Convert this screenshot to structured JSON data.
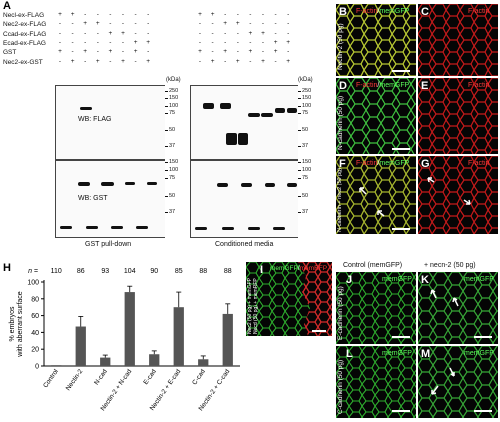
{
  "panel_a": {
    "label": "A",
    "row_labels": [
      "Necl-ex-FLAG",
      "Nec2-ex-FLAG",
      "Ccad-ex-FLAG",
      "Ecad-ex-FLAG",
      "GST",
      "Nec2-ex-GST"
    ],
    "pulldown_signs": [
      [
        "+",
        "+",
        "-",
        "-",
        "-",
        "-",
        "-",
        "-"
      ],
      [
        "-",
        "-",
        "+",
        "+",
        "-",
        "-",
        "-",
        "-"
      ],
      [
        "-",
        "-",
        "-",
        "-",
        "+",
        "+",
        "-",
        "-"
      ],
      [
        "-",
        "-",
        "-",
        "-",
        "-",
        "-",
        "+",
        "+"
      ],
      [
        "+",
        "-",
        "+",
        "-",
        "+",
        "-",
        "+",
        "-"
      ],
      [
        "-",
        "+",
        "-",
        "+",
        "-",
        "+",
        "-",
        "+"
      ]
    ],
    "cm_signs": [
      [
        "+",
        "+",
        "-",
        "-",
        "-",
        "-",
        "-",
        "-"
      ],
      [
        "-",
        "-",
        "+",
        "+",
        "-",
        "-",
        "-",
        "-"
      ],
      [
        "-",
        "-",
        "-",
        "-",
        "+",
        "+",
        "-",
        "-"
      ],
      [
        "-",
        "-",
        "-",
        "-",
        "-",
        "-",
        "+",
        "+"
      ],
      [
        "+",
        "-",
        "+",
        "-",
        "+",
        "-",
        "+",
        "-"
      ],
      [
        "-",
        "+",
        "-",
        "+",
        "-",
        "+",
        "-",
        "+"
      ]
    ],
    "kda": "(kDa)",
    "mw_top": [
      "250",
      "150",
      "100",
      "75",
      "50",
      "37"
    ],
    "mw_bottom": [
      "150",
      "100",
      "75",
      "50",
      "37"
    ],
    "wb_flag": "WB: FLAG",
    "wb_gst": "WB: GST",
    "pulldown_label": "GST pull-down",
    "cm_label": "Conditioned media"
  },
  "micrographs": {
    "B": {
      "label": "B",
      "caption_red": "F-actin",
      "caption_sep": "/",
      "caption_green": "memGFP",
      "side": "Nectin-2 (50 pg)"
    },
    "C": {
      "label": "C",
      "caption_red": "F-actin"
    },
    "D": {
      "label": "D",
      "caption_red": "F-actin",
      "caption_sep": "/",
      "caption_green": "memGFP",
      "side": "N-cadherin (50 pg)"
    },
    "E": {
      "label": "E",
      "caption_red": "F-actin"
    },
    "F": {
      "label": "F",
      "caption_red": "F-actin",
      "caption_sep": "/",
      "caption_green": "memGFP",
      "side": "N-cadherin + nec2 (50 pg)"
    },
    "G": {
      "label": "G",
      "caption_red": "F-actin"
    },
    "I": {
      "label": "I",
      "caption_green": "memGFP",
      "caption_sep": "/",
      "caption_red": "memRFP",
      "side1": "Nec2 (50 pg) + memGFP",
      "side2": "Necd (50 pg) + memRFP"
    },
    "J": {
      "label": "J",
      "caption": "memGFP",
      "side": "E-cadherin (50 pg)"
    },
    "K": {
      "label": "K",
      "caption": "memGFP"
    },
    "L": {
      "label": "L",
      "caption": "memGFP",
      "side": "C-cadherin (50 pg)"
    },
    "M": {
      "label": "M",
      "caption": "memGFP"
    },
    "col_header_1": "Control (memGFP)",
    "col_header_2": "+ necn-2 (50 pg)"
  },
  "panel_h": {
    "label": "H",
    "n_prefix": "n ="
  },
  "chart_data": {
    "type": "bar",
    "ylabel": "% embryos with aberrant surface",
    "ylim": [
      0,
      100
    ],
    "yticks": [
      0,
      20,
      40,
      60,
      80,
      100
    ],
    "categories": [
      "Control",
      "Nectin-2",
      "N-cad",
      "Nectin-2 + N-cad",
      "E-cad",
      "Nectin-2 + E-cad",
      "C-cad",
      "Nectin-2 + C-cad"
    ],
    "n": [
      "110",
      "86",
      "93",
      "104",
      "90",
      "85",
      "88",
      "88"
    ],
    "values": [
      1,
      47,
      10,
      88,
      14,
      70,
      8,
      62
    ],
    "errors": [
      0.5,
      12,
      3,
      7,
      4,
      18,
      4,
      12
    ],
    "bar_color": "#555555"
  }
}
